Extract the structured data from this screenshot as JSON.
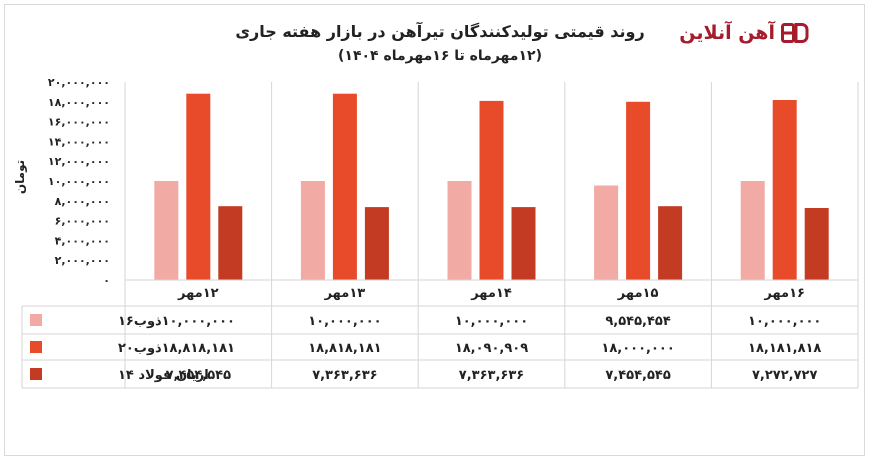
{
  "chart_data": {
    "type": "bar",
    "title": "روند قیمتی تولیدکنندگان تیرآهن در بازار هفته جاری",
    "subtitle": "(۱۲مهرماه تا ۱۶مهرماه ۱۴۰۴)",
    "ylabel": "تومان",
    "xlabel": "",
    "ylim": [
      0,
      20000000
    ],
    "yticks": [
      0,
      2000000,
      4000000,
      6000000,
      8000000,
      10000000,
      12000000,
      14000000,
      16000000,
      18000000,
      20000000
    ],
    "ytick_labels": [
      "۰",
      "۲,۰۰۰,۰۰۰",
      "۴,۰۰۰,۰۰۰",
      "۶,۰۰۰,۰۰۰",
      "۸,۰۰۰,۰۰۰",
      "۱۰,۰۰۰,۰۰۰",
      "۱۲,۰۰۰,۰۰۰",
      "۱۴,۰۰۰,۰۰۰",
      "۱۶,۰۰۰,۰۰۰",
      "۱۸,۰۰۰,۰۰۰",
      "۲۰,۰۰۰,۰۰۰"
    ],
    "categories": [
      "۱۲مهر",
      "۱۳مهر",
      "۱۴مهر",
      "۱۵مهر",
      "۱۶مهر"
    ],
    "grid": true,
    "legend": "data-table",
    "series": [
      {
        "name": "ذوب۱۶",
        "color": "#f2aba4",
        "values": [
          10000000,
          10000000,
          10000000,
          9545454,
          10000000
        ],
        "labels": [
          "۱۰,۰۰۰,۰۰۰",
          "۱۰,۰۰۰,۰۰۰",
          "۱۰,۰۰۰,۰۰۰",
          "۹,۵۴۵,۴۵۴",
          "۱۰,۰۰۰,۰۰۰"
        ]
      },
      {
        "name": "ذوب۲۰",
        "color": "#e84b2a",
        "values": [
          18818181,
          18818181,
          18090909,
          18000000,
          18181818
        ],
        "labels": [
          "۱۸,۸۱۸,۱۸۱",
          "۱۸,۸۱۸,۱۸۱",
          "۱۸,۰۹۰,۹۰۹",
          "۱۸,۰۰۰,۰۰۰",
          "۱۸,۱۸۱,۸۱۸"
        ]
      },
      {
        "name": "اریان فولاد ۱۴",
        "color": "#c23b22",
        "values": [
          7454545,
          7363636,
          7363636,
          7454545,
          7272727
        ],
        "labels": [
          "۷,۴۵۴,۵۴۵",
          "۷,۳۶۳,۶۳۶",
          "۷,۳۶۳,۶۳۶",
          "۷,۴۵۴,۵۴۵",
          "۷,۲۷۲,۷۲۷"
        ]
      }
    ]
  },
  "brand": {
    "name": "آهن آنلاین",
    "icon": "ahan-online-logo-icon",
    "color": "#a51d2d"
  }
}
